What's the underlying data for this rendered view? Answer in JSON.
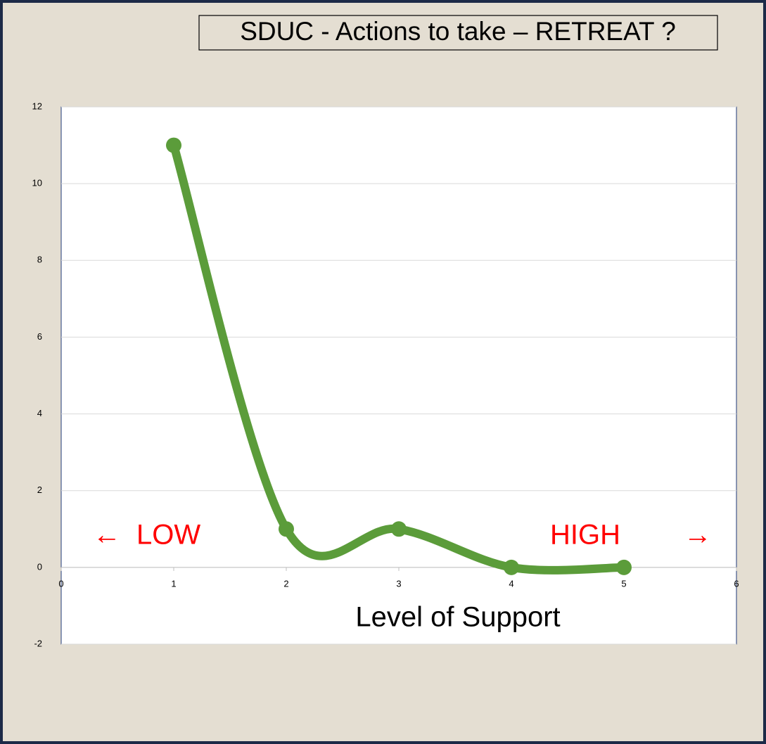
{
  "chart_data": {
    "type": "line",
    "title": "SDUC - Actions to take – RETREAT ?",
    "x_label": "Level of Support",
    "annotations": [
      "←",
      "LOW",
      "HIGH",
      "→"
    ],
    "annotation_color": "#ff0000",
    "x": [
      1,
      2,
      3,
      4,
      5
    ],
    "values": [
      11,
      1,
      1,
      0,
      0
    ],
    "color": "#5b9c3a",
    "smooth": true,
    "markers": true,
    "xlim": [
      0,
      6
    ],
    "xticks": [
      0,
      1,
      2,
      3,
      4,
      5,
      6
    ],
    "ylim": [
      -2,
      12
    ],
    "yticks": [
      -2,
      0,
      2,
      4,
      6,
      8,
      10,
      12
    ],
    "grid": true
  }
}
